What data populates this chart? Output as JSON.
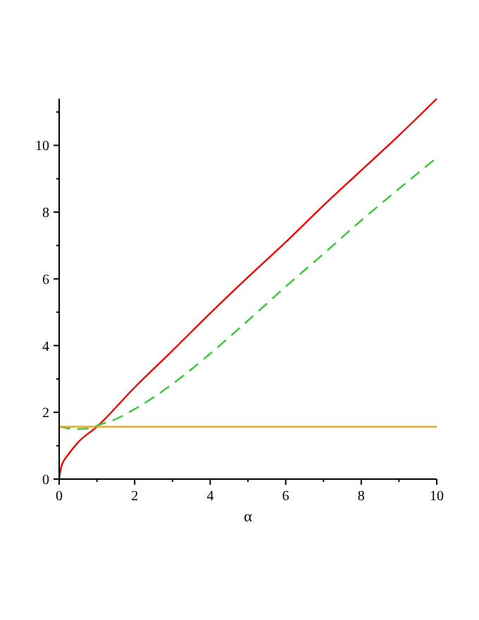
{
  "chart_data": {
    "type": "line",
    "xlabel": "α",
    "xlim": [
      0,
      10
    ],
    "ylim": [
      0,
      11.4
    ],
    "xticks": [
      0,
      {
        "value": 1,
        "label": null
      },
      2,
      {
        "value": 3,
        "label": null
      },
      4,
      {
        "value": 5,
        "label": null
      },
      6,
      {
        "value": 7,
        "label": null
      },
      8,
      {
        "value": 9,
        "label": null
      },
      10
    ],
    "yticks": [
      0,
      {
        "value": 1,
        "label": null
      },
      2,
      {
        "value": 3,
        "label": null
      },
      4,
      {
        "value": 5,
        "label": null
      },
      6,
      {
        "value": 7,
        "label": null
      },
      8,
      {
        "value": 9,
        "label": null
      },
      10,
      {
        "value": 11,
        "label": null
      }
    ],
    "grid": false,
    "marker": "none",
    "series": [
      {
        "color": "#ff0000",
        "line_style": "solid",
        "x": [
          0,
          0.05,
          0.1,
          0.25,
          0.5,
          1,
          2,
          3,
          4,
          5,
          6,
          7,
          8,
          9,
          10
        ],
        "values": [
          0,
          0.35,
          0.5,
          0.75,
          1.1,
          1.57,
          2.75,
          3.85,
          4.97,
          6.05,
          7.1,
          8.2,
          9.25,
          10.3,
          11.4
        ]
      },
      {
        "color": "#33cc33",
        "line_style": "dashed",
        "x": [
          0,
          0.25,
          0.5,
          0.8,
          1,
          1.5,
          2,
          3,
          4,
          5,
          6,
          7,
          8,
          9,
          10
        ],
        "values": [
          1.57,
          1.52,
          1.5,
          1.52,
          1.6,
          1.8,
          2.1,
          2.85,
          3.76,
          4.75,
          5.77,
          6.75,
          7.75,
          8.7,
          9.63
        ]
      },
      {
        "color": "#e6a21e",
        "line_style": "solid",
        "x": [
          0,
          10
        ],
        "values": [
          1.57,
          1.57
        ]
      }
    ]
  }
}
